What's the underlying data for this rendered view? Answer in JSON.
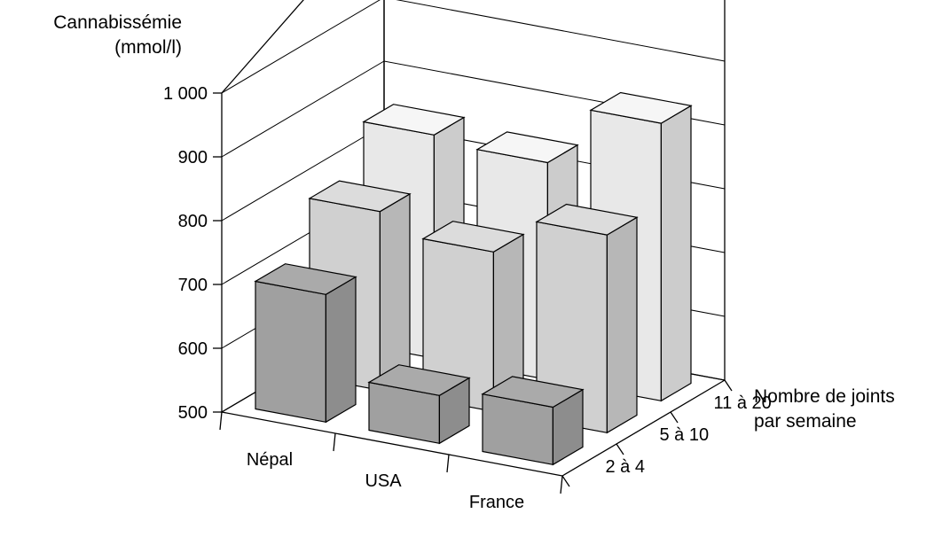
{
  "chart_data": {
    "type": "bar",
    "variant": "3d-grouped-bar",
    "title": "",
    "ylabel": "Cannabissémie",
    "yunit": "(mmol/l)",
    "depth_label_line1": "Nombre de joints",
    "depth_label_line2": "par semaine",
    "categories": [
      "Népal",
      "USA",
      "France"
    ],
    "yticks": [
      "500",
      "600",
      "700",
      "800",
      "900",
      "1 000"
    ],
    "ylim": [
      500,
      1000
    ],
    "grid": true,
    "series": [
      {
        "name": "2 à 4",
        "values": [
          700,
          575,
          590
        ],
        "color": "#a0a0a0"
      },
      {
        "name": "5 à 10",
        "values": [
          780,
          750,
          810
        ],
        "color": "#d0d0d0"
      },
      {
        "name": "11 à 20",
        "values": [
          850,
          840,
          935
        ],
        "color": "#e8e8e8"
      }
    ]
  }
}
